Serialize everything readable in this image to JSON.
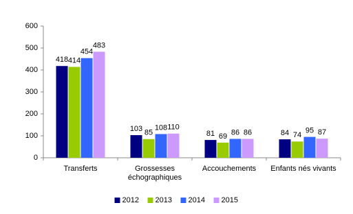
{
  "chart_data": {
    "type": "bar",
    "categories": [
      "Transferts",
      "Grossesses échographiques",
      "Accouchements",
      "Enfants nés vivants"
    ],
    "series": [
      {
        "name": "2012",
        "color": "#000080",
        "values": [
          418,
          103,
          81,
          84
        ]
      },
      {
        "name": "2013",
        "color": "#99cc00",
        "values": [
          414,
          85,
          69,
          74
        ]
      },
      {
        "name": "2014",
        "color": "#3366ff",
        "values": [
          454,
          108,
          86,
          95
        ]
      },
      {
        "name": "2015",
        "color": "#cc99ff",
        "values": [
          483,
          110,
          86,
          87
        ]
      }
    ],
    "ylim": [
      0,
      600
    ],
    "yticks": [
      0,
      100,
      200,
      300,
      400,
      500,
      600
    ],
    "grid": false,
    "legend": "bottom"
  }
}
